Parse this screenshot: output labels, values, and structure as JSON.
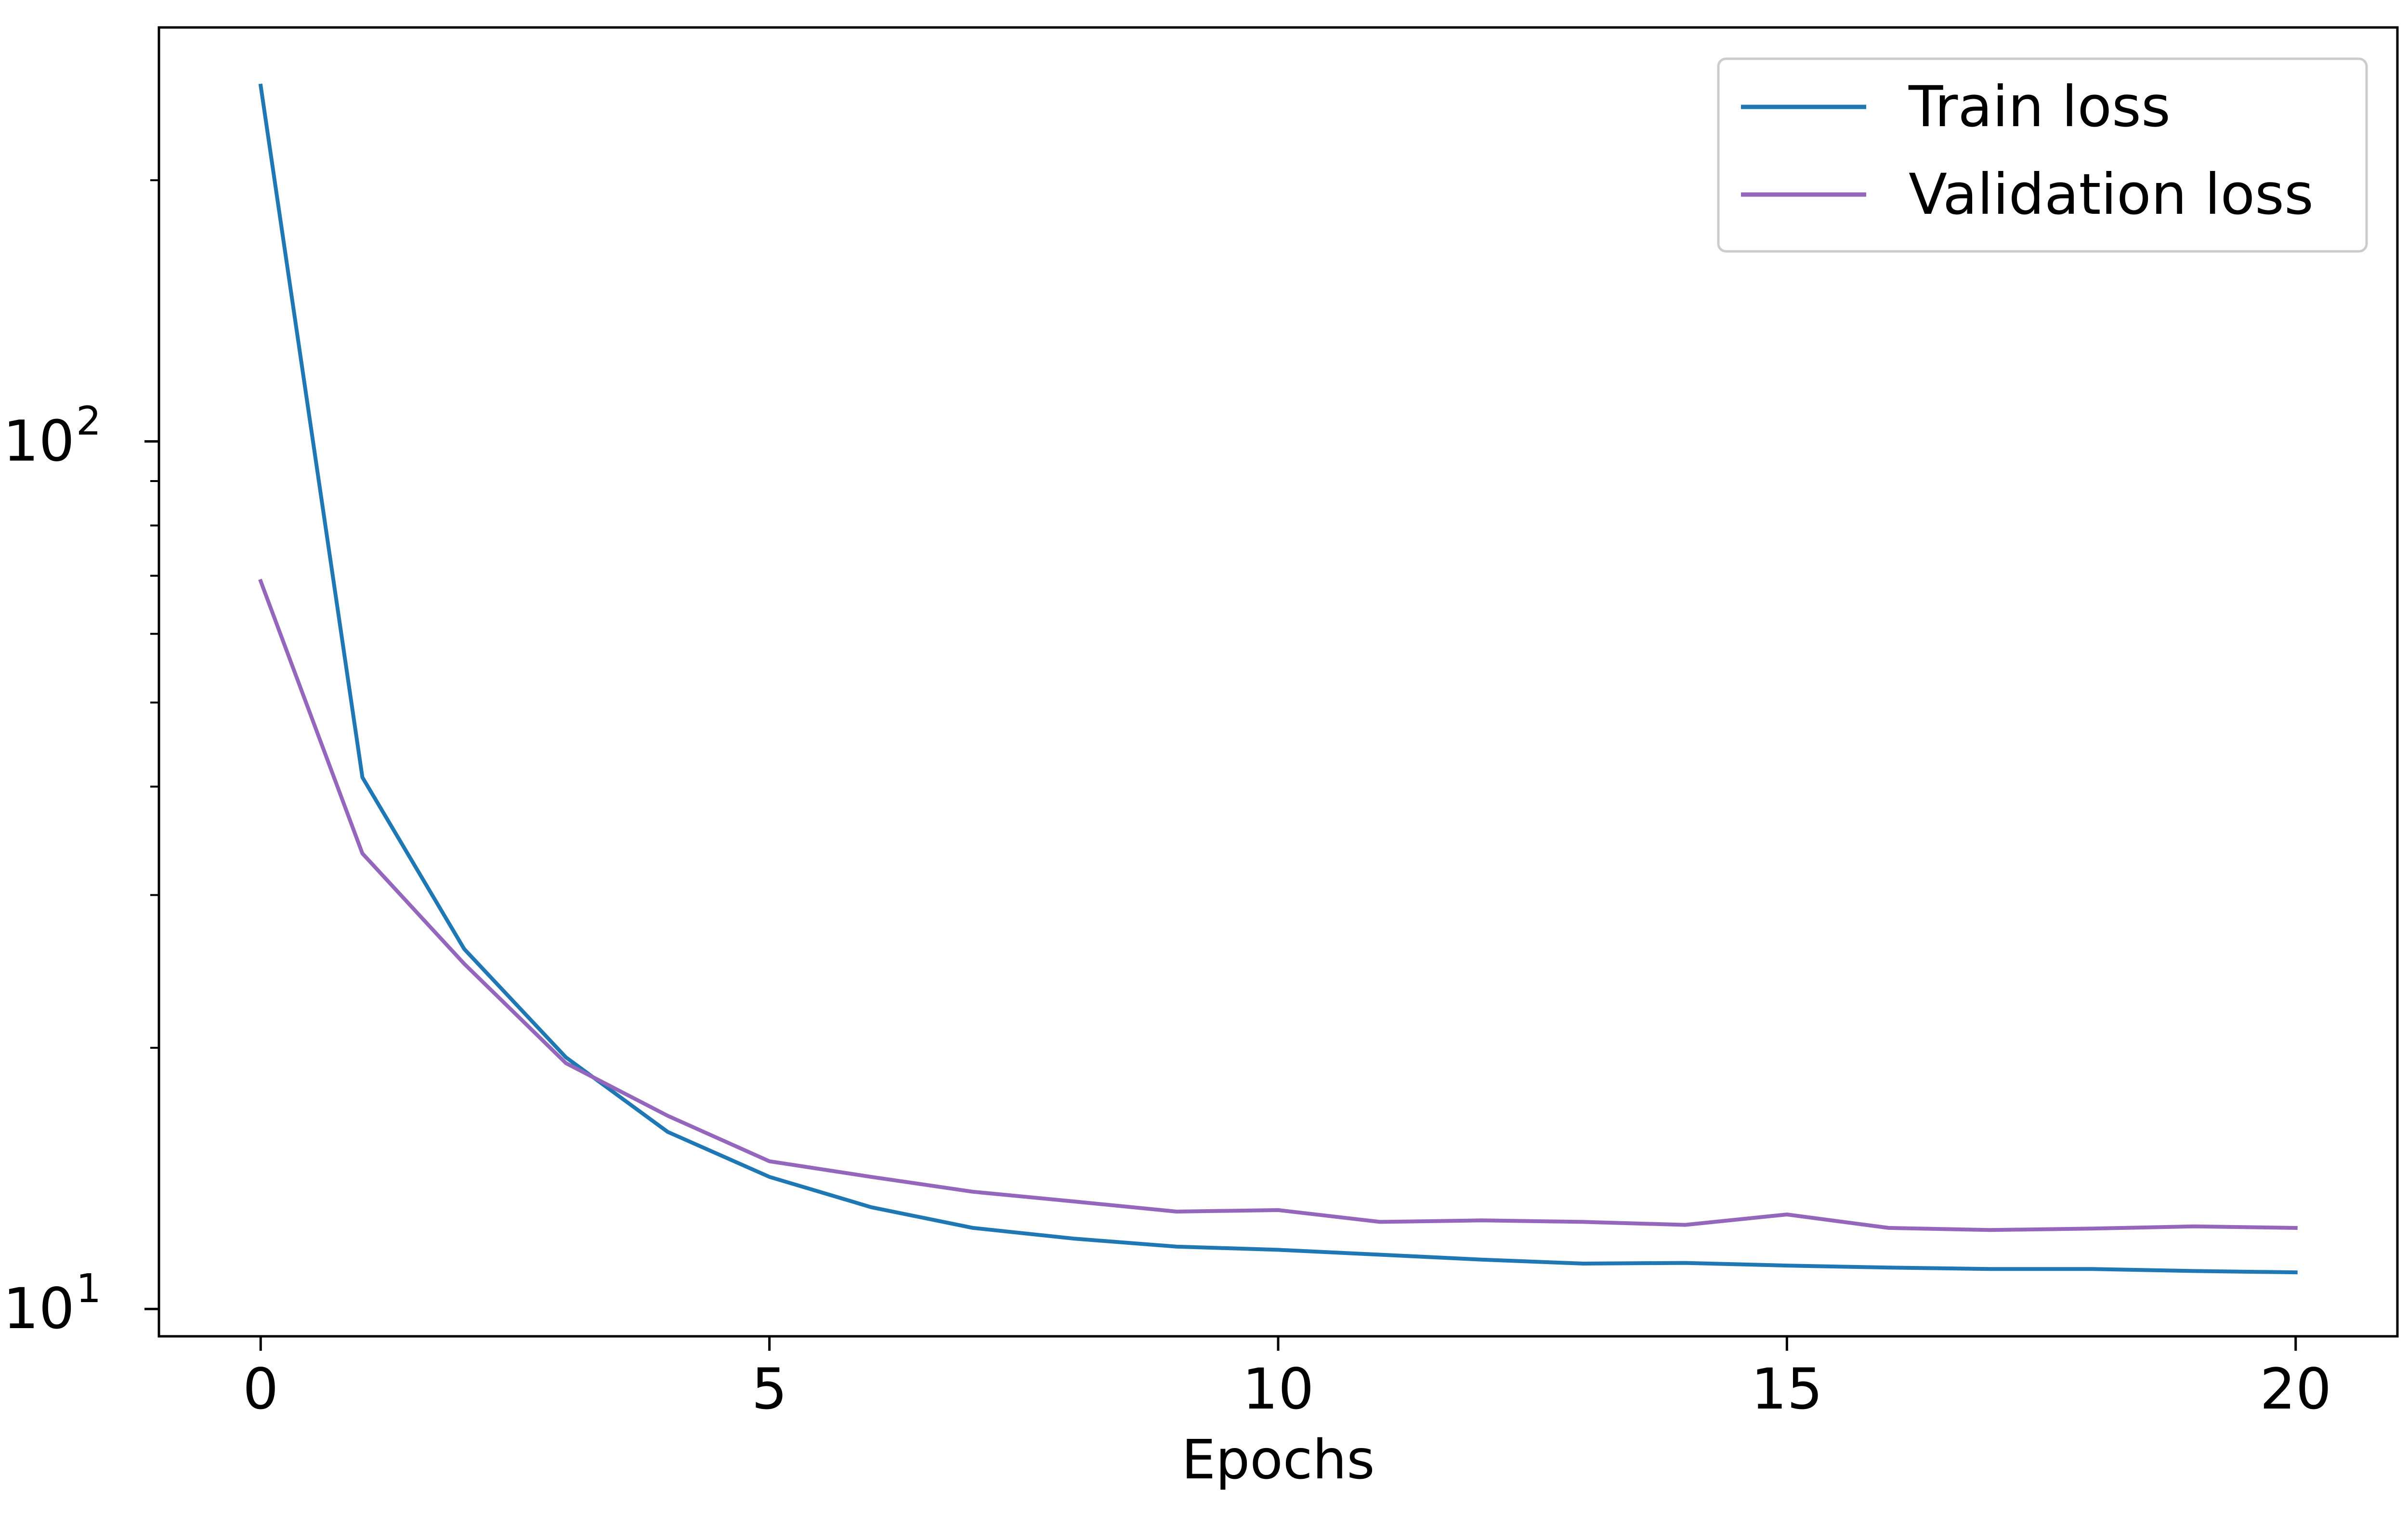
{
  "chart_data": {
    "type": "line",
    "title": "",
    "xlabel": "Epochs",
    "ylabel": "",
    "yscale": "log",
    "xlim": [
      -1,
      21
    ],
    "ylim": [
      9.3,
      300
    ],
    "grid": false,
    "legend_position": "top-right",
    "x_ticks": [
      0,
      5,
      10,
      15,
      20
    ],
    "x_tick_labels": [
      "0",
      "5",
      "10",
      "15",
      "20"
    ],
    "y_major_ticks": [
      {
        "value": 10,
        "base": "10",
        "exponent": "1"
      },
      {
        "value": 100,
        "base": "10",
        "exponent": "2"
      }
    ],
    "y_minor_ticks": [
      20,
      30,
      40,
      50,
      60,
      70,
      80,
      90,
      200
    ],
    "x": [
      0,
      1,
      2,
      3,
      4,
      5,
      6,
      7,
      8,
      9,
      10,
      11,
      12,
      13,
      14,
      15,
      16,
      17,
      18,
      19,
      20
    ],
    "series": [
      {
        "name": "Train loss",
        "color": "#1f77b4",
        "values": [
          257,
          41,
          26,
          19.5,
          16,
          14.2,
          13.1,
          12.4,
          12.05,
          11.8,
          11.7,
          11.55,
          11.4,
          11.28,
          11.3,
          11.22,
          11.16,
          11.12,
          11.12,
          11.06,
          11.02
        ]
      },
      {
        "name": "Validation loss",
        "color": "#9467bd",
        "values": [
          69,
          33.5,
          25,
          19.2,
          16.7,
          14.8,
          14.2,
          13.65,
          13.3,
          12.95,
          13.0,
          12.6,
          12.65,
          12.6,
          12.5,
          12.85,
          12.4,
          12.33,
          12.38,
          12.45,
          12.4
        ]
      }
    ]
  }
}
